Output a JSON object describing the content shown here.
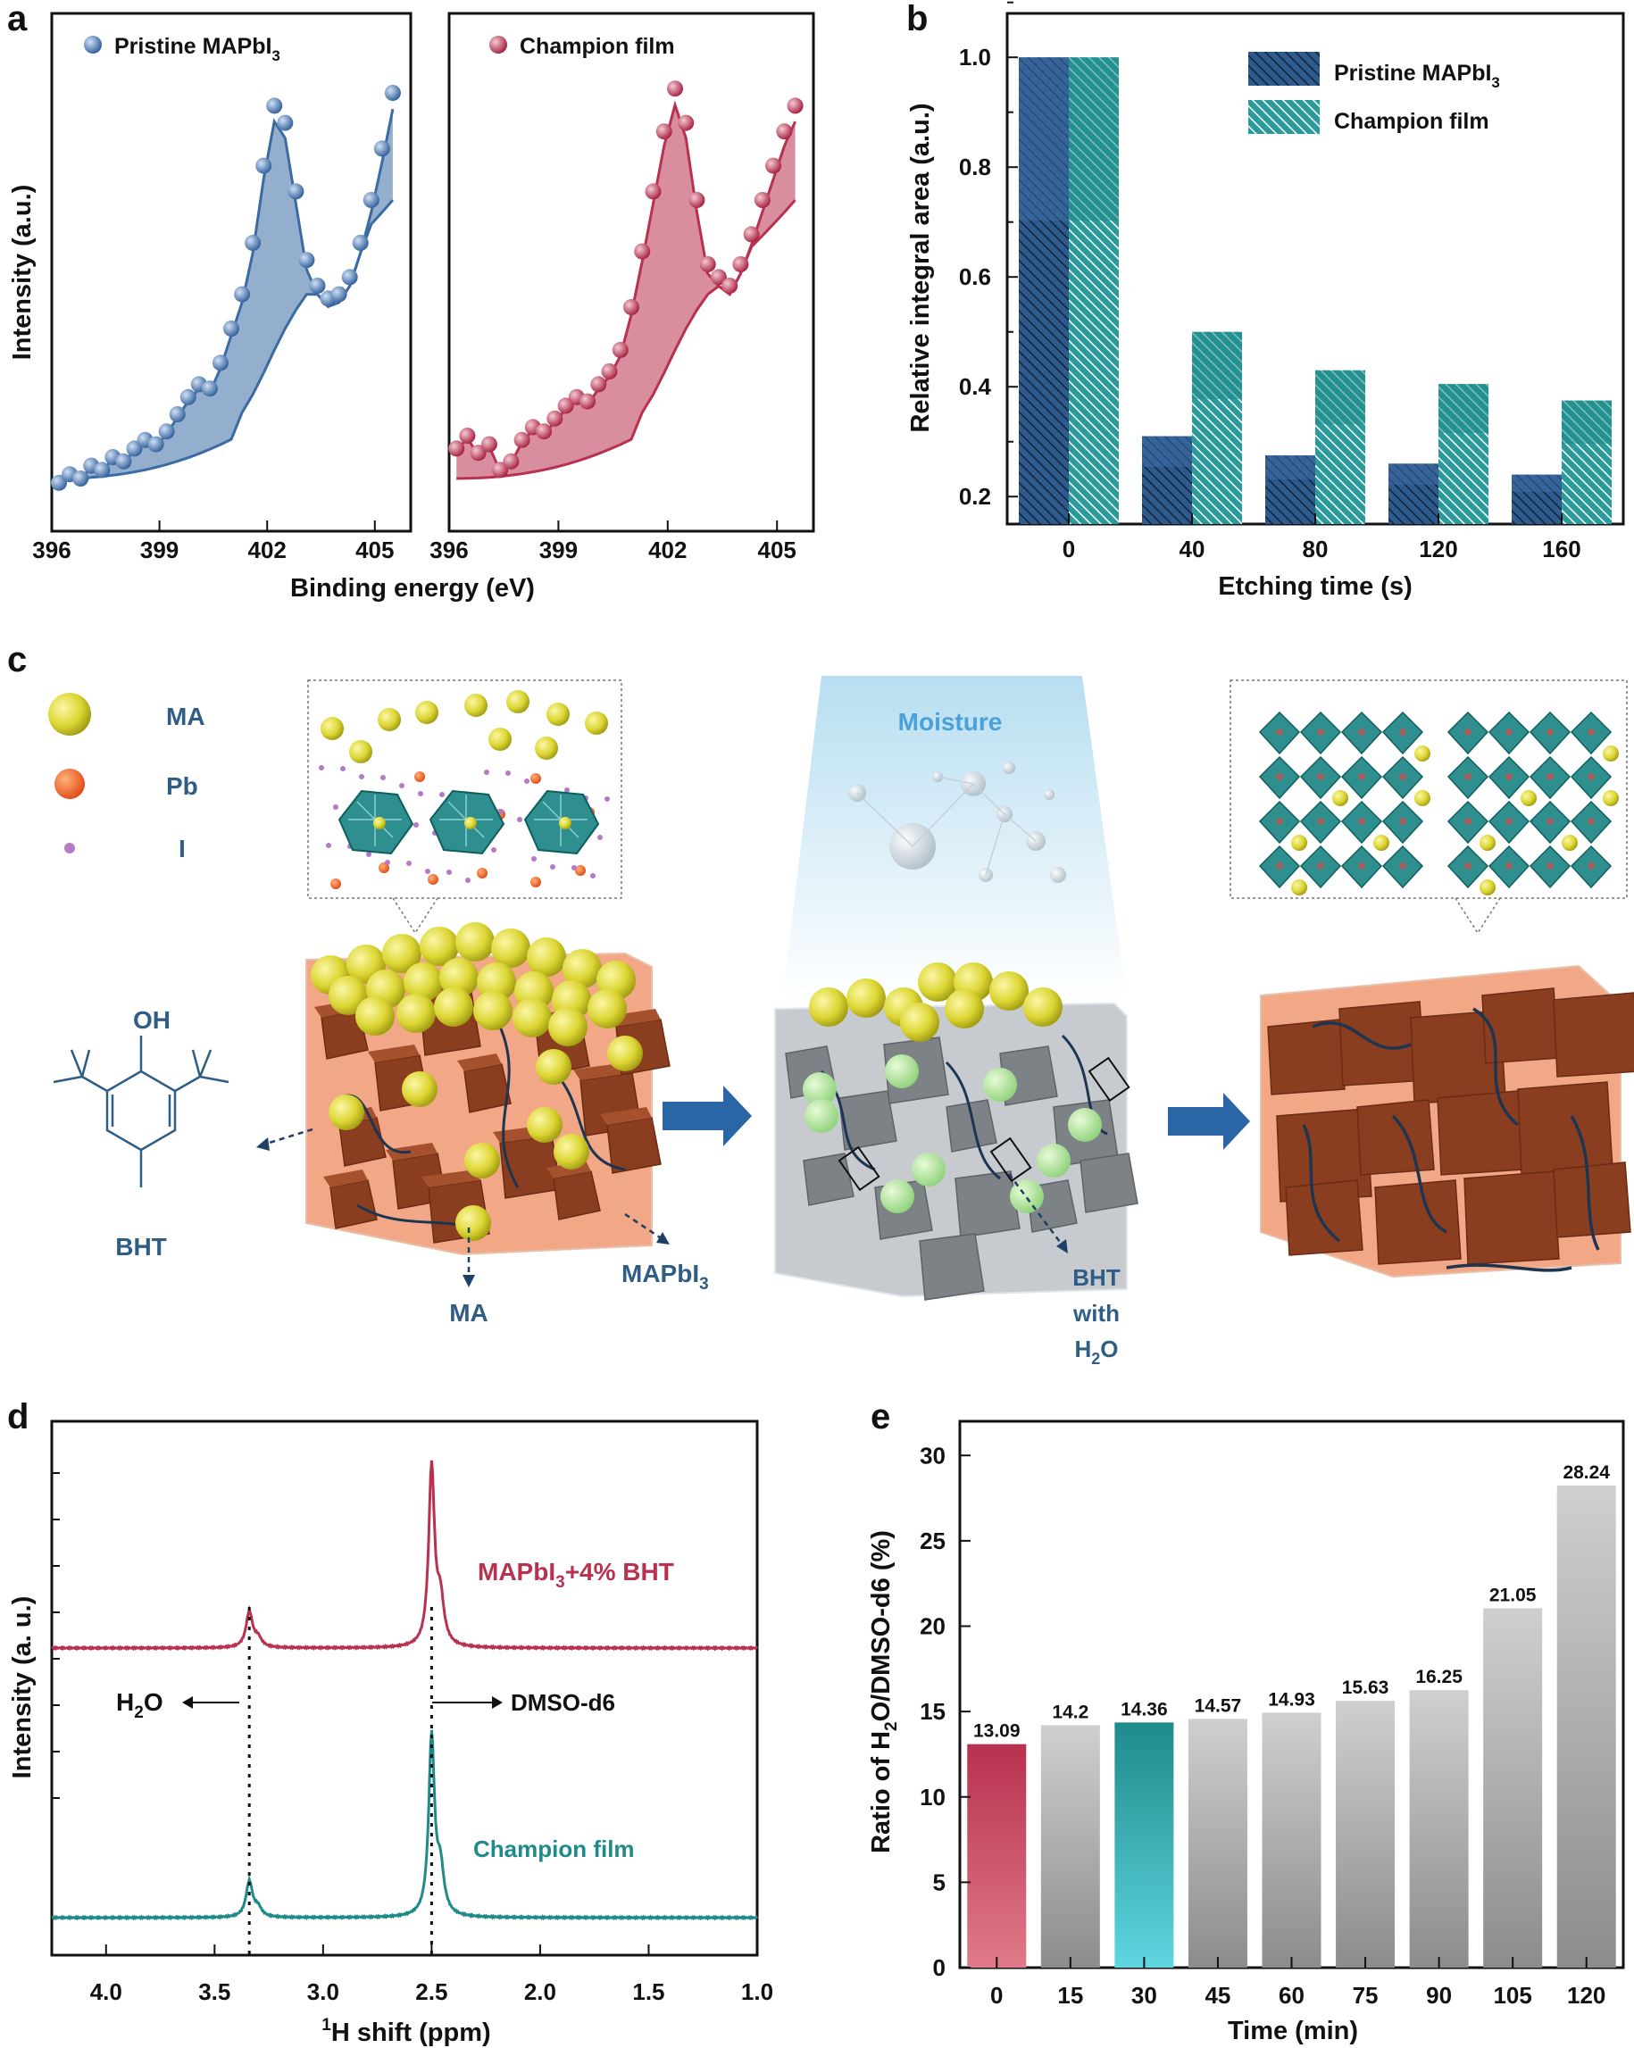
{
  "panels": {
    "a": "a",
    "b": "b",
    "c": "c",
    "d": "d",
    "e": "e"
  },
  "panel_a": {
    "left_legend": "Pristine MAPbI",
    "right_legend": "Champion film",
    "ylabel": "Intensity (a.u.)",
    "xlabel": "Binding energy (eV)",
    "ticks_left": [
      "396",
      "399",
      "402",
      "405"
    ],
    "ticks_right": [
      "396",
      "399",
      "402",
      "405"
    ]
  },
  "panel_c": {
    "legend_ma": "MA",
    "legend_pb": "Pb",
    "legend_i": "I",
    "oh": "OH",
    "bht": "BHT",
    "ma_arrow": "MA",
    "mapbi3_arrow": "MAPbI",
    "moisture": "Moisture",
    "bht_with": "BHT",
    "with": "with",
    "h2o": "H",
    "h2o_o": "O"
  },
  "colors": {
    "pristine": "#3d6ea5",
    "champion": "#b8314f",
    "teal": "#1f8a8a",
    "diagram_text": "#2f5d86",
    "moisture": "#4aa0d8"
  },
  "chart_data": [
    {
      "panel": "a-left",
      "type": "scatter",
      "series": [
        {
          "name": "Pristine MAPbI3"
        }
      ],
      "xlim": [
        396,
        406
      ],
      "x": [
        396.2,
        396.5,
        396.8,
        397.1,
        397.4,
        397.7,
        398.0,
        398.3,
        398.6,
        398.9,
        399.2,
        399.5,
        399.8,
        400.1,
        400.4,
        400.7,
        401.0,
        401.3,
        401.6,
        401.9,
        402.2,
        402.5,
        402.8,
        403.1,
        403.4,
        403.7,
        404.0,
        404.3,
        404.6,
        404.9,
        405.2,
        405.5
      ],
      "y": [
        0.04,
        0.06,
        0.05,
        0.08,
        0.07,
        0.1,
        0.09,
        0.12,
        0.14,
        0.13,
        0.16,
        0.2,
        0.24,
        0.27,
        0.26,
        0.32,
        0.4,
        0.48,
        0.6,
        0.78,
        0.92,
        0.88,
        0.72,
        0.56,
        0.5,
        0.47,
        0.48,
        0.52,
        0.6,
        0.7,
        0.82,
        0.95
      ]
    },
    {
      "panel": "a-right",
      "type": "scatter",
      "series": [
        {
          "name": "Champion film"
        }
      ],
      "xlim": [
        396,
        406
      ],
      "x": [
        396.2,
        396.5,
        396.8,
        397.1,
        397.4,
        397.7,
        398.0,
        398.3,
        398.6,
        398.9,
        399.2,
        399.5,
        399.8,
        400.1,
        400.4,
        400.7,
        401.0,
        401.3,
        401.6,
        401.9,
        402.2,
        402.5,
        402.8,
        403.1,
        403.4,
        403.7,
        404.0,
        404.3,
        404.6,
        404.9,
        405.2,
        405.5
      ],
      "y": [
        0.12,
        0.15,
        0.11,
        0.13,
        0.07,
        0.09,
        0.14,
        0.17,
        0.16,
        0.19,
        0.22,
        0.24,
        0.23,
        0.27,
        0.3,
        0.35,
        0.45,
        0.58,
        0.72,
        0.86,
        0.96,
        0.88,
        0.7,
        0.55,
        0.52,
        0.5,
        0.55,
        0.62,
        0.7,
        0.78,
        0.86,
        0.92
      ]
    },
    {
      "panel": "b",
      "type": "bar",
      "categories": [
        "0",
        "40",
        "80",
        "120",
        "160"
      ],
      "series": [
        {
          "name": "Pristine MAPbI3",
          "values": [
            1.0,
            0.31,
            0.275,
            0.26,
            0.24
          ]
        },
        {
          "name": "Champion film",
          "values": [
            1.0,
            0.5,
            0.43,
            0.405,
            0.375
          ]
        }
      ],
      "legend": [
        "Pristine MAPbI",
        "Champion film"
      ],
      "xlabel": "Etching time (s)",
      "ylabel": "Relative integral area (a.u.)",
      "ylim": [
        0.15,
        1.08
      ],
      "yticks": [
        "0.2",
        "0.4",
        "0.6",
        "0.8",
        "1.0"
      ]
    },
    {
      "panel": "d",
      "type": "line",
      "xlim": [
        4.25,
        1.0
      ],
      "xticks": [
        "4.0",
        "3.5",
        "3.0",
        "2.5",
        "2.0",
        "1.5",
        "1.0"
      ],
      "xlabel": "H shift (ppm)",
      "xlabel_sup": "1",
      "ylabel": "Intensity (a. u.)",
      "series": [
        {
          "name": "MAPbI3+4% BHT",
          "peaks": [
            {
              "x": 3.34,
              "h": 0.2
            },
            {
              "x": 2.5,
              "h": 1.0
            }
          ]
        },
        {
          "name": "Champion film",
          "peaks": [
            {
              "x": 3.34,
              "h": 0.2
            },
            {
              "x": 2.5,
              "h": 1.0
            }
          ]
        }
      ],
      "label_top": "MAPbI",
      "label_top_rest": "+4% BHT",
      "label_bottom": "Champion film",
      "h2o_label": "H",
      "h2o_label_rest": "O",
      "dmso_label": "DMSO-d6"
    },
    {
      "panel": "e",
      "type": "bar",
      "categories": [
        "0",
        "15",
        "30",
        "45",
        "60",
        "75",
        "90",
        "105",
        "120"
      ],
      "values": [
        13.09,
        14.2,
        14.36,
        14.57,
        14.93,
        15.63,
        16.25,
        21.05,
        28.24
      ],
      "labels": [
        "13.09",
        "14.2",
        "14.36",
        "14.57",
        "14.93",
        "15.63",
        "16.25",
        "21.05",
        "28.24"
      ],
      "xlabel": "Time (min)",
      "ylabel_pre": "Ratio of H",
      "ylabel_post": "O/DMSO-d6 (%)",
      "ylim": [
        0,
        32
      ],
      "yticks": [
        "0",
        "5",
        "10",
        "15",
        "20",
        "25",
        "30"
      ]
    }
  ]
}
